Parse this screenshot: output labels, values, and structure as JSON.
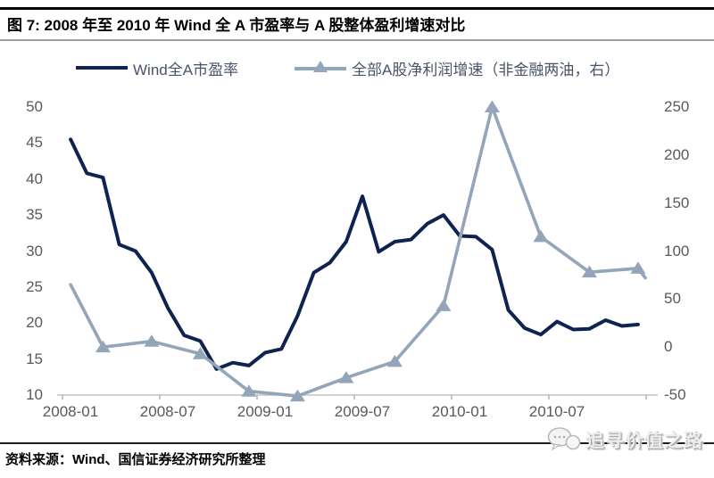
{
  "title": "图 7: 2008 年至 2010 年 Wind 全 A 市盈率与 A 股整体盈利增速对比",
  "legend": {
    "items": [
      {
        "label": "Wind全A市盈率",
        "marker": "line"
      },
      {
        "label": "全部A股净利润增速（非金融两油，右）",
        "marker": "line-triangle"
      }
    ]
  },
  "source_note": "资料来源：Wind、国信证券经济研究所整理",
  "watermark": {
    "text": "追寻价值之路"
  },
  "colors": {
    "pe_line": "#0f2350",
    "growth_line": "#93a5b8",
    "axis_text": "#56595e",
    "axis_line": "#c3c3c3"
  },
  "chart_data": {
    "type": "line",
    "title": "2008-2010 Wind all-A PE vs A-share overall profit growth",
    "x_axis": {
      "start": "2008-01",
      "end": "2010-12",
      "tick_labels": [
        "2008-01",
        "2008-07",
        "2009-01",
        "2009-07",
        "2010-01",
        "2010-07"
      ]
    },
    "left_axis": {
      "min": 10,
      "max": 50,
      "step": 5,
      "tick_labels": [
        "50",
        "45",
        "40",
        "35",
        "30",
        "25",
        "20",
        "15",
        "10"
      ]
    },
    "right_axis": {
      "min": -50,
      "max": 250,
      "step": 50,
      "tick_labels": [
        "250",
        "200",
        "150",
        "100",
        "50",
        "0",
        "-50"
      ]
    },
    "grid": false,
    "legend_position": "top",
    "series": [
      {
        "name": "Wind全A市盈率",
        "axis": "left",
        "color": "#0f2350",
        "marker": "none",
        "x_months": [
          0,
          1,
          2,
          3,
          4,
          5,
          6,
          7,
          8,
          9,
          10,
          11,
          12,
          13,
          14,
          15,
          16,
          17,
          18,
          19,
          20,
          21,
          22,
          23,
          24,
          25,
          26,
          27,
          28,
          29,
          30,
          31,
          32,
          33,
          34,
          35
        ],
        "values": [
          45.5,
          40.8,
          40.2,
          30.9,
          30.0,
          27.0,
          22.1,
          18.3,
          17.5,
          13.6,
          14.5,
          14.1,
          15.9,
          16.4,
          21.0,
          27.0,
          28.4,
          31.3,
          37.6,
          29.9,
          31.3,
          31.6,
          33.8,
          35.0,
          32.1,
          32.0,
          30.2,
          21.8,
          19.3,
          18.4,
          20.2,
          19.1,
          19.2,
          20.4,
          19.6,
          19.8
        ]
      },
      {
        "name": "全部A股净利润增速（非金融两油，右）",
        "axis": "right",
        "color": "#93a5b8",
        "marker": "triangle",
        "x_months": [
          0,
          2,
          5,
          8,
          11,
          14,
          17,
          20,
          23,
          26,
          29,
          32,
          35,
          35.45
        ],
        "values": [
          65,
          0,
          6,
          -7,
          -46,
          -51,
          -32,
          -15,
          43,
          250,
          115,
          78,
          82,
          72
        ],
        "marker_indices": [
          1,
          2,
          3,
          4,
          5,
          6,
          7,
          8,
          9,
          10,
          11,
          12
        ]
      }
    ]
  }
}
